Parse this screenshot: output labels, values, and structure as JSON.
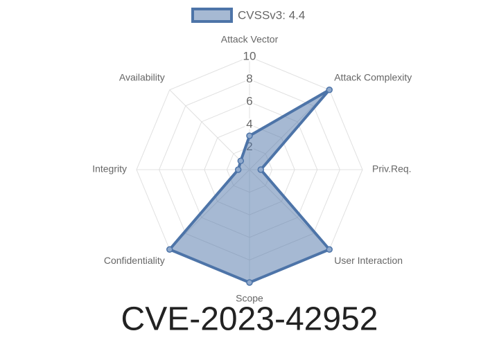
{
  "chart_data": {
    "type": "radar",
    "title": "CVE-2023-42952",
    "categories": [
      "Attack Vector",
      "Attack Complexity",
      "Priv.Req.",
      "User Interaction",
      "Scope",
      "Confidentiality",
      "Integrity",
      "Availability"
    ],
    "series": [
      {
        "name": "CVSSv3: 4.4",
        "color": "#4d74a8",
        "values": [
          3,
          10,
          1,
          10,
          10,
          10,
          1,
          1.1
        ]
      }
    ],
    "ylim": [
      0,
      10
    ],
    "yticks": [
      2,
      4,
      6,
      8,
      10
    ],
    "grid": true,
    "legend": "top"
  }
}
